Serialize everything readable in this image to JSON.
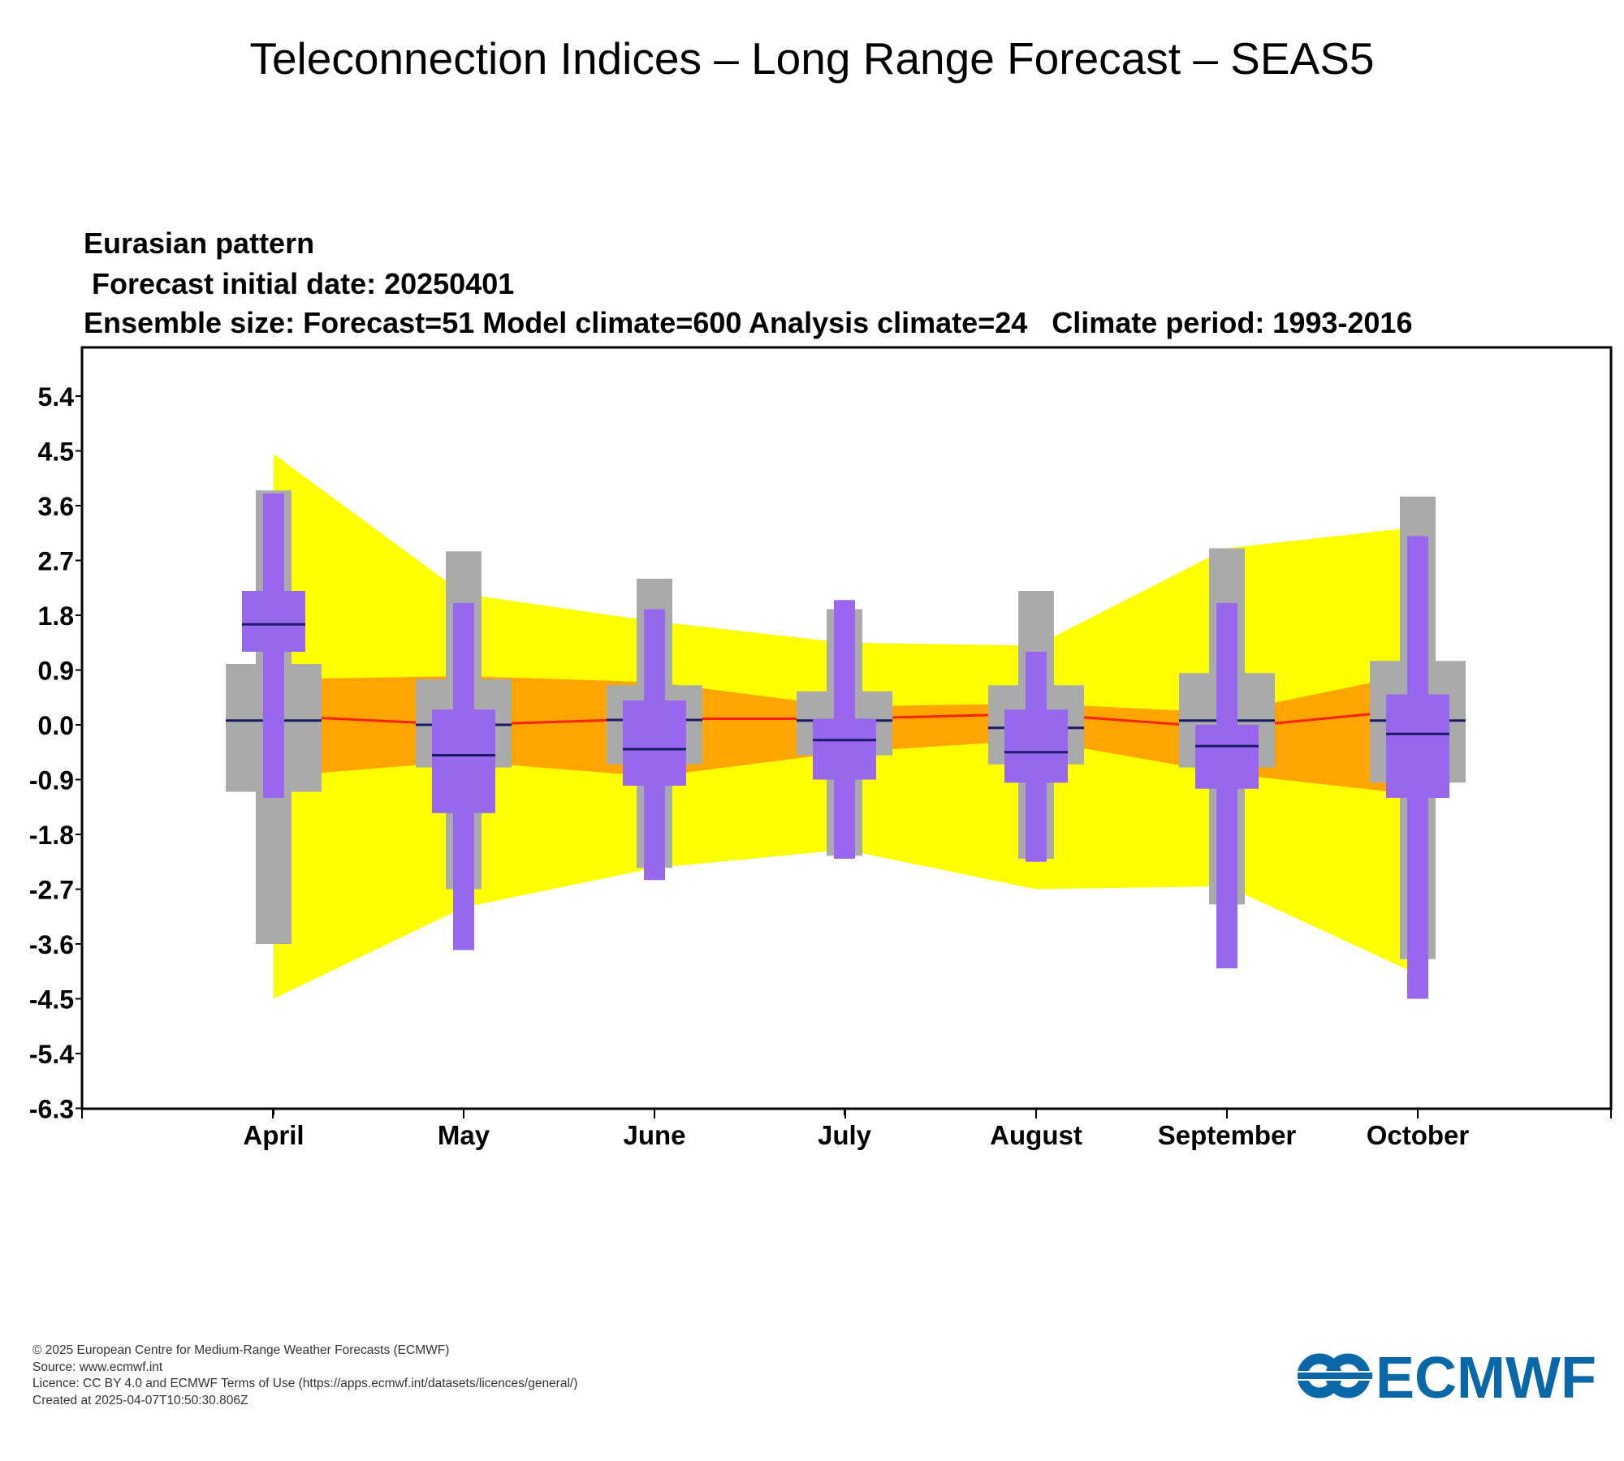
{
  "page": {
    "title": "Teleconnection Indices – Long Range Forecast – SEAS5"
  },
  "chart_data": {
    "type": "box",
    "title_lines": [
      "Eurasian pattern",
      " Forecast initial date: 20250401",
      "Ensemble size: Forecast=51 Model climate=600 Analysis climate=24   Climate period: 1993-2016"
    ],
    "categories": [
      "April",
      "May",
      "June",
      "July",
      "August",
      "September",
      "October"
    ],
    "ylim": [
      -6.3,
      6.3
    ],
    "yticks": [
      "5.4",
      "4.5",
      "3.6",
      "2.7",
      "1.8",
      "0.9",
      "0.0",
      "-0.9",
      "-1.8",
      "-2.7",
      "-3.6",
      "-4.5",
      "-5.4",
      "-6.3"
    ],
    "grid": false,
    "colors": {
      "climate_outer_band": "#ffff00",
      "climate_inner_band": "#ffa500",
      "climate_median_line": "#ff2200",
      "model_climate_box": "#aaaaaa",
      "forecast_box": "#9966ee",
      "median_marker": "#1a1a66"
    },
    "analysis_climate_band": {
      "outer_upper": [
        4.45,
        2.15,
        1.7,
        1.35,
        1.3,
        2.9,
        3.25
      ],
      "outer_lower": [
        -4.5,
        -3.0,
        -2.35,
        -2.05,
        -2.7,
        -2.65,
        -4.1
      ],
      "inner_upper": [
        0.75,
        0.8,
        0.7,
        0.3,
        0.35,
        0.2,
        0.85
      ],
      "inner_lower": [
        -0.85,
        -0.6,
        -0.85,
        -0.45,
        -0.25,
        -0.8,
        -1.15
      ],
      "median": [
        0.15,
        0.0,
        0.1,
        0.1,
        0.18,
        -0.05,
        0.25
      ]
    },
    "model_climate": {
      "max": [
        3.85,
        2.85,
        2.4,
        1.9,
        2.2,
        2.9,
        3.75
      ],
      "q_upper": [
        1.0,
        0.75,
        0.65,
        0.55,
        0.65,
        0.85,
        1.05
      ],
      "median": [
        0.07,
        0.0,
        0.08,
        0.07,
        -0.05,
        0.07,
        0.07
      ],
      "q_lower": [
        -1.1,
        -0.7,
        -0.65,
        -0.5,
        -0.65,
        -0.7,
        -0.95
      ],
      "min": [
        -3.6,
        -2.7,
        -2.35,
        -2.15,
        -2.2,
        -2.95,
        -3.85
      ]
    },
    "forecast": {
      "max": [
        3.8,
        2.0,
        1.9,
        2.05,
        1.2,
        2.0,
        3.1
      ],
      "q_upper": [
        2.2,
        0.25,
        0.4,
        0.1,
        0.25,
        0.0,
        0.5
      ],
      "median": [
        1.65,
        -0.5,
        -0.4,
        -0.25,
        -0.45,
        -0.35,
        -0.15
      ],
      "q_lower": [
        1.2,
        -1.45,
        -1.0,
        -0.9,
        -0.95,
        -1.05,
        -1.2
      ],
      "min": [
        -1.2,
        -3.7,
        -2.55,
        -2.2,
        -2.25,
        -4.0,
        -4.5
      ]
    }
  },
  "footer": {
    "copyright": "© 2025 European Centre for Medium-Range Weather Forecasts (ECMWF)",
    "source": "Source: www.ecmwf.int",
    "licence": "Licence: CC BY 4.0 and ECMWF Terms of Use (https://apps.ecmwf.int/datasets/licences/general/)",
    "created": "Created at 2025-04-07T10:50:30.806Z"
  },
  "logo": {
    "text": "ECMWF",
    "color": "#0b68a8"
  }
}
